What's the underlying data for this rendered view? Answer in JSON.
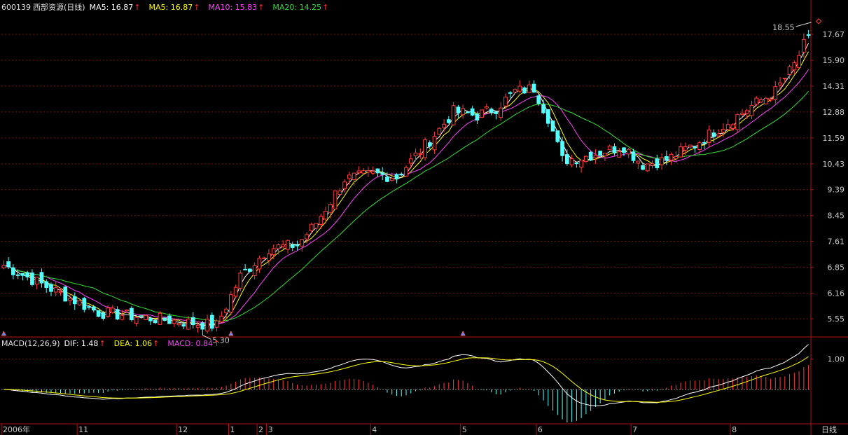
{
  "header": {
    "symbol": "600139",
    "name": "西部资源(日线)",
    "ma_items": [
      {
        "label": "MA5: 16.87",
        "color": "#ffffff"
      },
      {
        "label": "MA5: 16.87",
        "color": "#ffff00"
      },
      {
        "label": "MA10: 15.83",
        "color": "#ff40ff"
      },
      {
        "label": "MA20: 14.25",
        "color": "#30e030"
      }
    ],
    "arrow": "↑"
  },
  "macd_header": {
    "title": "MACD(12,26,9)",
    "items": [
      {
        "label": "DIF: 1.48",
        "color": "#ffffff"
      },
      {
        "label": "DEA: 1.06",
        "color": "#ffff00"
      },
      {
        "label": "MACD: 0.84",
        "color": "#ff40ff"
      }
    ],
    "arrow": "↑"
  },
  "annotations": {
    "high": "18.55",
    "low": "5.30"
  },
  "period_label": "日线",
  "chart_data": [
    {
      "type": "candlestick",
      "title": "600139 西部资源(日线)",
      "y_ticks": [
        17.67,
        15.9,
        14.31,
        12.88,
        11.59,
        10.43,
        9.39,
        8.45,
        7.61,
        6.85,
        6.16,
        5.55
      ],
      "y_scale": "log",
      "ylim": [
        5.2,
        19.3
      ],
      "x_labels": [
        "2006年",
        "11",
        "12",
        "1",
        "2",
        "3",
        "4",
        "5",
        "6",
        "7",
        "8"
      ],
      "x_label_index": [
        0,
        16,
        37,
        48,
        54,
        56,
        78,
        97,
        113,
        133,
        154
      ],
      "n_days": 171,
      "key_points": [
        [
          0,
          6.9
        ],
        [
          20,
          5.7
        ],
        [
          45,
          5.4
        ],
        [
          50,
          6.6
        ],
        [
          56,
          7.4
        ],
        [
          62,
          7.5
        ],
        [
          66,
          8.2
        ],
        [
          72,
          9.8
        ],
        [
          78,
          10.0
        ],
        [
          83,
          9.9
        ],
        [
          88,
          11.0
        ],
        [
          92,
          12.0
        ],
        [
          95,
          12.9
        ],
        [
          100,
          12.7
        ],
        [
          104,
          13.1
        ],
        [
          108,
          14.0
        ],
        [
          112,
          14.2
        ],
        [
          115,
          12.6
        ],
        [
          118,
          10.6
        ],
        [
          122,
          10.7
        ],
        [
          127,
          11.0
        ],
        [
          131,
          11.2
        ],
        [
          135,
          10.4
        ],
        [
          140,
          10.6
        ],
        [
          146,
          11.3
        ],
        [
          152,
          12.2
        ],
        [
          158,
          13.2
        ],
        [
          163,
          14.0
        ],
        [
          167,
          15.6
        ],
        [
          170,
          17.6
        ]
      ],
      "series": [
        {
          "name": "MA5",
          "value": 16.87,
          "color": "#ffff00"
        },
        {
          "name": "MA10",
          "value": 15.83,
          "color": "#ff40ff"
        },
        {
          "name": "MA20",
          "value": 14.25,
          "color": "#30e030"
        }
      ],
      "high_marker": 18.55,
      "low_marker": 5.3
    },
    {
      "type": "bar+line",
      "title": "MACD(12,26,9)",
      "y_ticks": [
        1.0
      ],
      "ylim": [
        -1.1,
        1.7
      ],
      "series": [
        {
          "name": "DIF",
          "value": 1.48,
          "color": "#ffffff"
        },
        {
          "name": "DEA",
          "value": 1.06,
          "color": "#ffff00"
        },
        {
          "name": "MACD",
          "value": 0.84,
          "color": "#ff40ff"
        }
      ]
    }
  ]
}
